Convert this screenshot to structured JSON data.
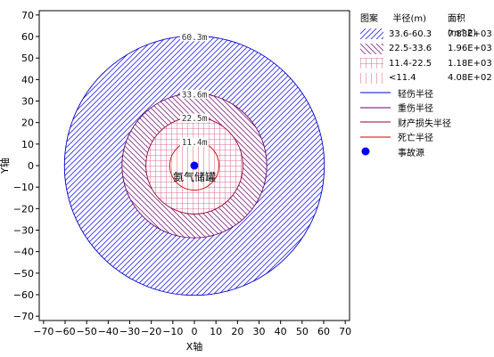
{
  "chart_data": {
    "type": "area",
    "xlabel": "X轴",
    "ylabel": "Y轴",
    "xlim": [
      -72,
      72
    ],
    "ylim": [
      -72,
      72
    ],
    "xticks": [
      -70,
      -60,
      -50,
      -40,
      -30,
      -20,
      -10,
      0,
      10,
      20,
      30,
      40,
      50,
      60,
      70
    ],
    "yticks": [
      -70,
      -60,
      -50,
      -40,
      -30,
      -20,
      -10,
      0,
      10,
      20,
      30,
      40,
      50,
      60,
      70
    ],
    "grid": false,
    "legend_placement": "right",
    "center": {
      "x": 0,
      "y": 0
    },
    "circles": [
      {
        "radius": 60.3,
        "label": "60.3m",
        "color": "#0000cc"
      },
      {
        "radius": 33.6,
        "label": "33.6m",
        "color": "#660066"
      },
      {
        "radius": 22.5,
        "label": "22.5m",
        "color": "#990033"
      },
      {
        "radius": 11.4,
        "label": "11.4m",
        "color": "#cc0000"
      }
    ],
    "zones": [
      {
        "range": "33.6-60.3",
        "area": "7.88E+03",
        "pattern": "diag-blue",
        "color": "#3333ee"
      },
      {
        "range": "22.5-33.6",
        "area": "1.96E+03",
        "pattern": "diag-purple",
        "color": "#883388"
      },
      {
        "range": "11.4-22.5",
        "area": "1.18E+03",
        "pattern": "grid-red",
        "color": "#cc4477"
      },
      {
        "range": "<11.4",
        "area": "4.08E+02",
        "pattern": "vert-red",
        "color": "#dd3344"
      }
    ],
    "radius_lines": [
      {
        "name": "轻伤半径",
        "color": "#0000cc"
      },
      {
        "name": "重伤半径",
        "color": "#660066"
      },
      {
        "name": "财产损失半径",
        "color": "#990033"
      },
      {
        "name": "死亡半径",
        "color": "#cc0000"
      }
    ],
    "source": {
      "name": "事故源",
      "annotation": "氨气储罐",
      "x": 0,
      "y": 0,
      "color": "#0000ff"
    },
    "legend_header": {
      "pattern": "图案",
      "radius": "半径(m)",
      "area": "面积(m^2)"
    }
  }
}
